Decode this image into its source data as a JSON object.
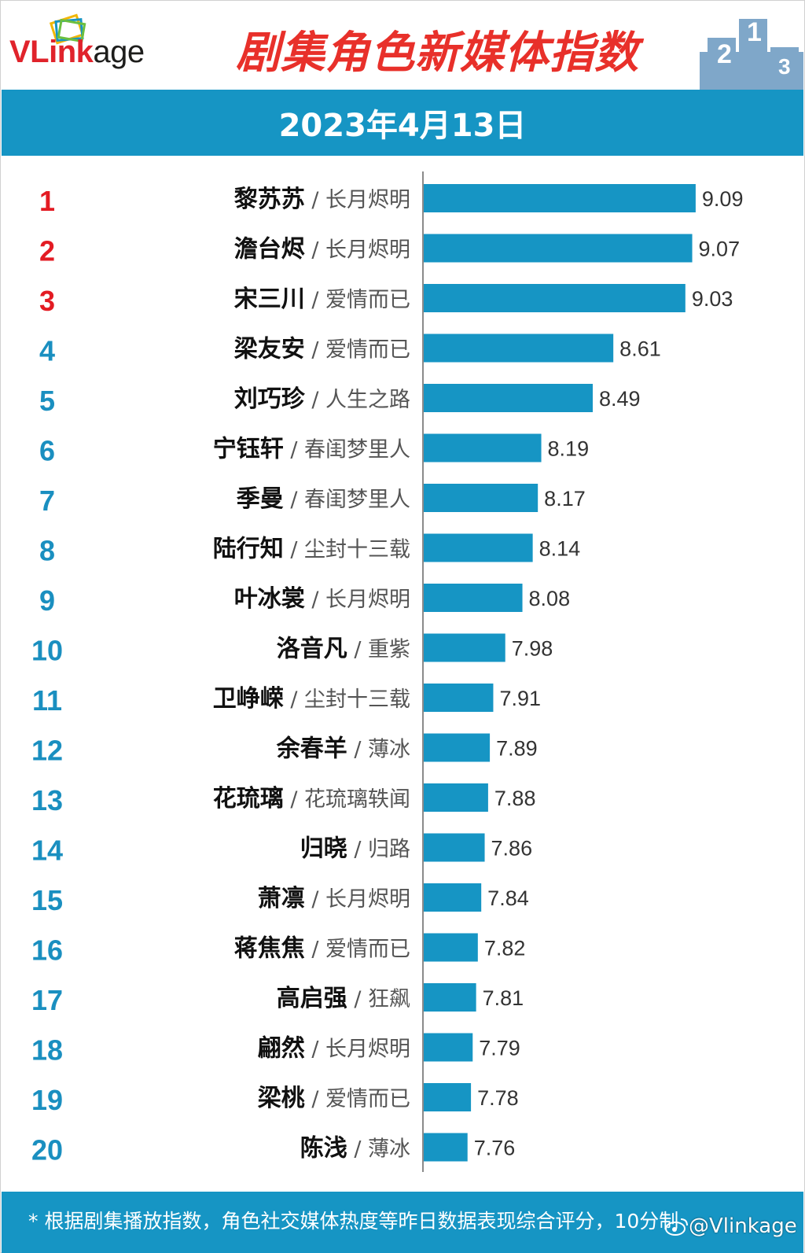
{
  "header": {
    "logo_v_l": "VL",
    "logo_ink": "ink",
    "logo_age": "age",
    "title": "剧集角色新媒体指数",
    "date": "2023年4月13日"
  },
  "footer": {
    "note": "* 根据剧集播放指数，角色社交媒体热度等昨日数据表现综合评分，10分制",
    "watermark": "@Vlinkage"
  },
  "colors": {
    "bar": "#1695c4",
    "rank_top3": "#e31b23",
    "rank_rest": "#1a8fc0",
    "title": "#e8302a"
  },
  "chart_data": {
    "type": "bar",
    "orientation": "horizontal",
    "xlim": [
      7.5,
      9.15
    ],
    "categories": [
      "1",
      "2",
      "3",
      "4",
      "5",
      "6",
      "7",
      "8",
      "9",
      "10",
      "11",
      "12",
      "13",
      "14",
      "15",
      "16",
      "17",
      "18",
      "19",
      "20"
    ],
    "rows": [
      {
        "rank": "1",
        "name": "黎苏苏",
        "drama": "长月烬明",
        "value": 9.09,
        "label": "9.09"
      },
      {
        "rank": "2",
        "name": "澹台烬",
        "drama": "长月烬明",
        "value": 9.07,
        "label": "9.07"
      },
      {
        "rank": "3",
        "name": "宋三川",
        "drama": "爱情而已",
        "value": 9.03,
        "label": "9.03"
      },
      {
        "rank": "4",
        "name": "梁友安",
        "drama": "爱情而已",
        "value": 8.61,
        "label": "8.61"
      },
      {
        "rank": "5",
        "name": "刘巧珍",
        "drama": "人生之路",
        "value": 8.49,
        "label": "8.49"
      },
      {
        "rank": "6",
        "name": "宁钰轩",
        "drama": "春闺梦里人",
        "value": 8.19,
        "label": "8.19"
      },
      {
        "rank": "7",
        "name": "季曼",
        "drama": "春闺梦里人",
        "value": 8.17,
        "label": "8.17"
      },
      {
        "rank": "8",
        "name": "陆行知",
        "drama": "尘封十三载",
        "value": 8.14,
        "label": "8.14"
      },
      {
        "rank": "9",
        "name": "叶冰裳",
        "drama": "长月烬明",
        "value": 8.08,
        "label": "8.08"
      },
      {
        "rank": "10",
        "name": "洛音凡",
        "drama": "重紫",
        "value": 7.98,
        "label": "7.98"
      },
      {
        "rank": "11",
        "name": "卫峥嵘",
        "drama": "尘封十三载",
        "value": 7.91,
        "label": "7.91"
      },
      {
        "rank": "12",
        "name": "余春羊",
        "drama": "薄冰",
        "value": 7.89,
        "label": "7.89"
      },
      {
        "rank": "13",
        "name": "花琉璃",
        "drama": "花琉璃轶闻",
        "value": 7.88,
        "label": "7.88"
      },
      {
        "rank": "14",
        "name": "归晓",
        "drama": "归路",
        "value": 7.86,
        "label": "7.86"
      },
      {
        "rank": "15",
        "name": "萧凛",
        "drama": "长月烬明",
        "value": 7.84,
        "label": "7.84"
      },
      {
        "rank": "16",
        "name": "蒋焦焦",
        "drama": "爱情而已",
        "value": 7.82,
        "label": "7.82"
      },
      {
        "rank": "17",
        "name": "高启强",
        "drama": "狂飙",
        "value": 7.81,
        "label": "7.81"
      },
      {
        "rank": "18",
        "name": "翩然",
        "drama": "长月烬明",
        "value": 7.79,
        "label": "7.79"
      },
      {
        "rank": "19",
        "name": "梁桃",
        "drama": "爱情而已",
        "value": 7.78,
        "label": "7.78"
      },
      {
        "rank": "20",
        "name": "陈浅",
        "drama": "薄冰",
        "value": 7.76,
        "label": "7.76"
      }
    ]
  }
}
